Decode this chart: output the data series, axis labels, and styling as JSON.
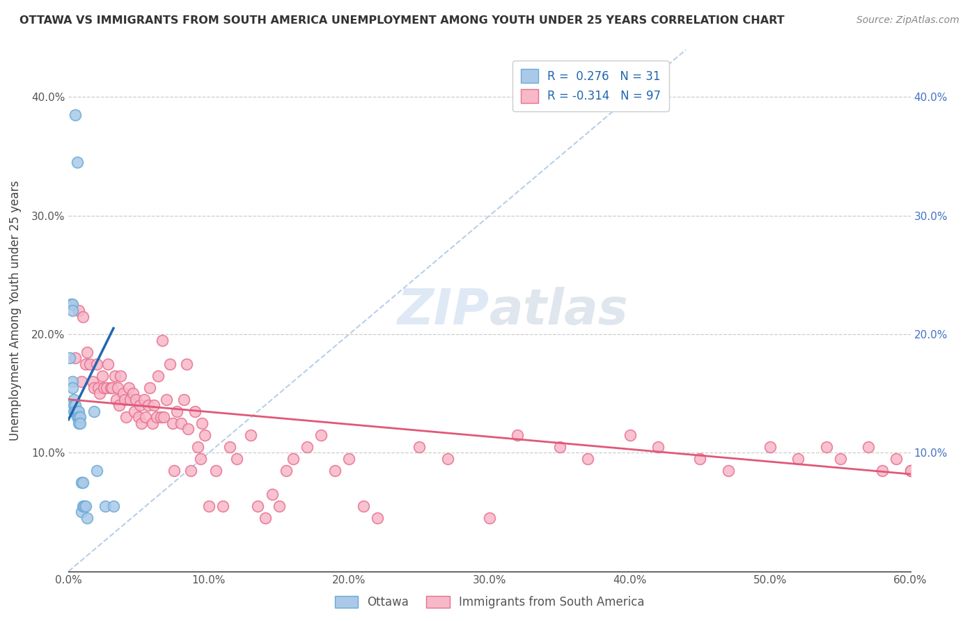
{
  "title": "OTTAWA VS IMMIGRANTS FROM SOUTH AMERICA UNEMPLOYMENT AMONG YOUTH UNDER 25 YEARS CORRELATION CHART",
  "source": "Source: ZipAtlas.com",
  "ylabel": "Unemployment Among Youth under 25 years",
  "xlim": [
    0.0,
    0.6
  ],
  "ylim": [
    0.0,
    0.44
  ],
  "ottawa_R": 0.276,
  "ottawa_N": 31,
  "immigrants_R": -0.314,
  "immigrants_N": 97,
  "ottawa_color": "#aac9e8",
  "ottawa_edge_color": "#6aaad4",
  "ottawa_line_color": "#2166b0",
  "immigrants_color": "#f7b8c8",
  "immigrants_edge_color": "#e87090",
  "immigrants_line_color": "#e05878",
  "diag_color": "#b8cfe8",
  "watermark_color": "#c5d8ee",
  "background_color": "#ffffff",
  "ottawa_x": [
    0.005,
    0.006,
    0.002,
    0.003,
    0.003,
    0.001,
    0.003,
    0.003,
    0.004,
    0.004,
    0.004,
    0.005,
    0.005,
    0.006,
    0.006,
    0.007,
    0.007,
    0.007,
    0.008,
    0.008,
    0.009,
    0.009,
    0.01,
    0.01,
    0.011,
    0.012,
    0.013,
    0.018,
    0.02,
    0.026,
    0.032
  ],
  "ottawa_y": [
    0.385,
    0.345,
    0.225,
    0.225,
    0.22,
    0.18,
    0.16,
    0.155,
    0.145,
    0.14,
    0.135,
    0.14,
    0.135,
    0.135,
    0.13,
    0.135,
    0.13,
    0.125,
    0.13,
    0.125,
    0.075,
    0.05,
    0.075,
    0.055,
    0.055,
    0.055,
    0.045,
    0.135,
    0.085,
    0.055,
    0.055
  ],
  "immigrants_x": [
    0.005,
    0.007,
    0.009,
    0.01,
    0.012,
    0.013,
    0.015,
    0.017,
    0.018,
    0.02,
    0.021,
    0.022,
    0.024,
    0.025,
    0.027,
    0.028,
    0.03,
    0.031,
    0.033,
    0.034,
    0.035,
    0.036,
    0.037,
    0.039,
    0.04,
    0.041,
    0.043,
    0.044,
    0.046,
    0.047,
    0.048,
    0.05,
    0.051,
    0.052,
    0.054,
    0.055,
    0.057,
    0.058,
    0.06,
    0.061,
    0.063,
    0.064,
    0.066,
    0.067,
    0.068,
    0.07,
    0.072,
    0.074,
    0.075,
    0.077,
    0.08,
    0.082,
    0.084,
    0.085,
    0.087,
    0.09,
    0.092,
    0.094,
    0.095,
    0.097,
    0.1,
    0.105,
    0.11,
    0.115,
    0.12,
    0.13,
    0.135,
    0.14,
    0.145,
    0.15,
    0.155,
    0.16,
    0.17,
    0.18,
    0.19,
    0.2,
    0.21,
    0.22,
    0.25,
    0.27,
    0.3,
    0.32,
    0.35,
    0.37,
    0.4,
    0.42,
    0.45,
    0.47,
    0.5,
    0.52,
    0.54,
    0.55,
    0.57,
    0.58,
    0.59,
    0.6,
    0.6
  ],
  "immigrants_y": [
    0.18,
    0.22,
    0.16,
    0.215,
    0.175,
    0.185,
    0.175,
    0.16,
    0.155,
    0.175,
    0.155,
    0.15,
    0.165,
    0.155,
    0.155,
    0.175,
    0.155,
    0.155,
    0.165,
    0.145,
    0.155,
    0.14,
    0.165,
    0.15,
    0.145,
    0.13,
    0.155,
    0.145,
    0.15,
    0.135,
    0.145,
    0.13,
    0.14,
    0.125,
    0.145,
    0.13,
    0.14,
    0.155,
    0.125,
    0.14,
    0.13,
    0.165,
    0.13,
    0.195,
    0.13,
    0.145,
    0.175,
    0.125,
    0.085,
    0.135,
    0.125,
    0.145,
    0.175,
    0.12,
    0.085,
    0.135,
    0.105,
    0.095,
    0.125,
    0.115,
    0.055,
    0.085,
    0.055,
    0.105,
    0.095,
    0.115,
    0.055,
    0.045,
    0.065,
    0.055,
    0.085,
    0.095,
    0.105,
    0.115,
    0.085,
    0.095,
    0.055,
    0.045,
    0.105,
    0.095,
    0.045,
    0.115,
    0.105,
    0.095,
    0.115,
    0.105,
    0.095,
    0.085,
    0.105,
    0.095,
    0.105,
    0.095,
    0.105,
    0.085,
    0.095,
    0.085,
    0.085
  ],
  "ottawa_trend_x": [
    0.0,
    0.032
  ],
  "ottawa_trend_y": [
    0.128,
    0.205
  ],
  "immigrants_trend_x": [
    0.0,
    0.6
  ],
  "immigrants_trend_y": [
    0.145,
    0.082
  ]
}
